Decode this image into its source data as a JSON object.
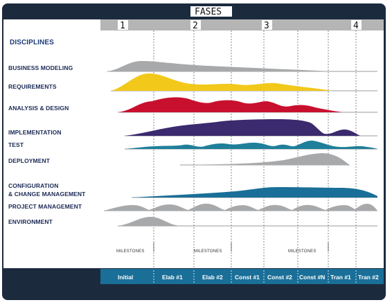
{
  "header": {
    "title": "FASES",
    "phases": [
      "1",
      "2",
      "3",
      "4"
    ]
  },
  "disciplines_heading": "DISCIPLINES",
  "disciplines": [
    "BUSINESS MODELING",
    "REQUIREMENTS",
    "ANALYSIS & DESIGN",
    "IMPLEMENTATION",
    "TEST",
    "DEPLOYMENT",
    "CONFIGURATION",
    "& CHANGE MANAGEMENT",
    "PROJECT MANAGEMENT",
    "ENVIRONMENT"
  ],
  "milestones": [
    "MILESTONES",
    "MILESTONES",
    "MILESTONES"
  ],
  "iterations": [
    "Initial",
    "Elab #1",
    "Elab #2",
    "Const #1",
    "Const #2",
    "Const #N",
    "Tran #1",
    "Tran #2"
  ],
  "colors": {
    "frame": "#1b2a3d",
    "teal_bar": "#1a6f98",
    "business": "#a7a9ab",
    "requirements": "#f2c81a",
    "analysis": "#c8102e",
    "implementation": "#3b2a6e",
    "test": "#1f7f9a",
    "deployment": "#a7a9ab",
    "configuration": "#1a6f98",
    "project": "#a7a9ab",
    "environment": "#a7a9ab"
  }
}
